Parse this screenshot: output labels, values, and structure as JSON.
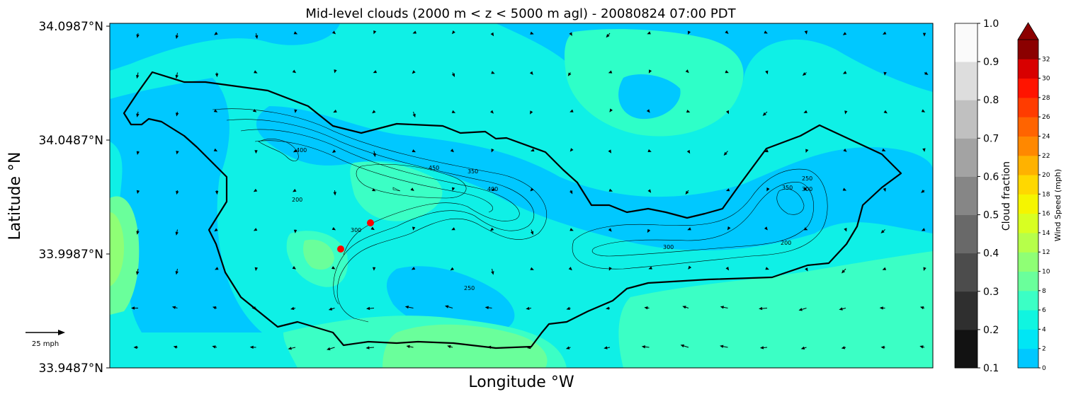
{
  "title": "Mid-level clouds (2000 m < z < 5000 m agl) - 20080824 07:00 PDT",
  "chart_data": {
    "type": "map",
    "title": "Mid-level clouds (2000 m < z < 5000 m agl) - 20080824 07:00 PDT",
    "xlabel": "Longitude $^\\circ$W",
    "ylabel": "Latitude $^\\circ$N",
    "xlabel_text": "Longitude °W",
    "ylabel_text": "Latitude °N",
    "yticks": [
      {
        "label": "34.0987°N",
        "value": 34.0987
      },
      {
        "label": "34.0487°N",
        "value": 34.0487
      },
      {
        "label": "33.9987°N",
        "value": 33.9987
      },
      {
        "label": "33.9487°N",
        "value": 33.9487
      }
    ],
    "ylim": [
      33.9487,
      34.0987
    ],
    "cloud_colorbar": {
      "label": "Cloud fraction",
      "ticks": [
        "0.1",
        "0.2",
        "0.3",
        "0.4",
        "0.5",
        "0.6",
        "0.7",
        "0.8",
        "0.9",
        "1.0"
      ],
      "range": [
        0.1,
        1.0
      ]
    },
    "wind_colorbar": {
      "label": "Wind Speed (mph)",
      "ticks": [
        "0",
        "2",
        "4",
        "6",
        "8",
        "10",
        "12",
        "14",
        "16",
        "18",
        "20",
        "22",
        "24",
        "26",
        "28",
        "30",
        "32"
      ],
      "colors": [
        "#00c8ff",
        "#00e6f5",
        "#10f5e0",
        "#3bffc5",
        "#6aff9b",
        "#8fff75",
        "#b6ff4a",
        "#d8ff22",
        "#f5f500",
        "#ffd800",
        "#ffb200",
        "#ff8800",
        "#ff6400",
        "#ff3c00",
        "#ff1400",
        "#d80000",
        "#8b0000"
      ],
      "extend": "max"
    },
    "reference_vector": {
      "label": "25 mph",
      "value": 25
    },
    "contour_labels": [
      "400",
      "450",
      "350",
      "400",
      "200",
      "300",
      "250",
      "250",
      "350",
      "300",
      "300",
      "200"
    ],
    "markers": [
      {
        "type": "point",
        "color": "#ff0000"
      },
      {
        "type": "point",
        "color": "#ff0000"
      }
    ]
  }
}
